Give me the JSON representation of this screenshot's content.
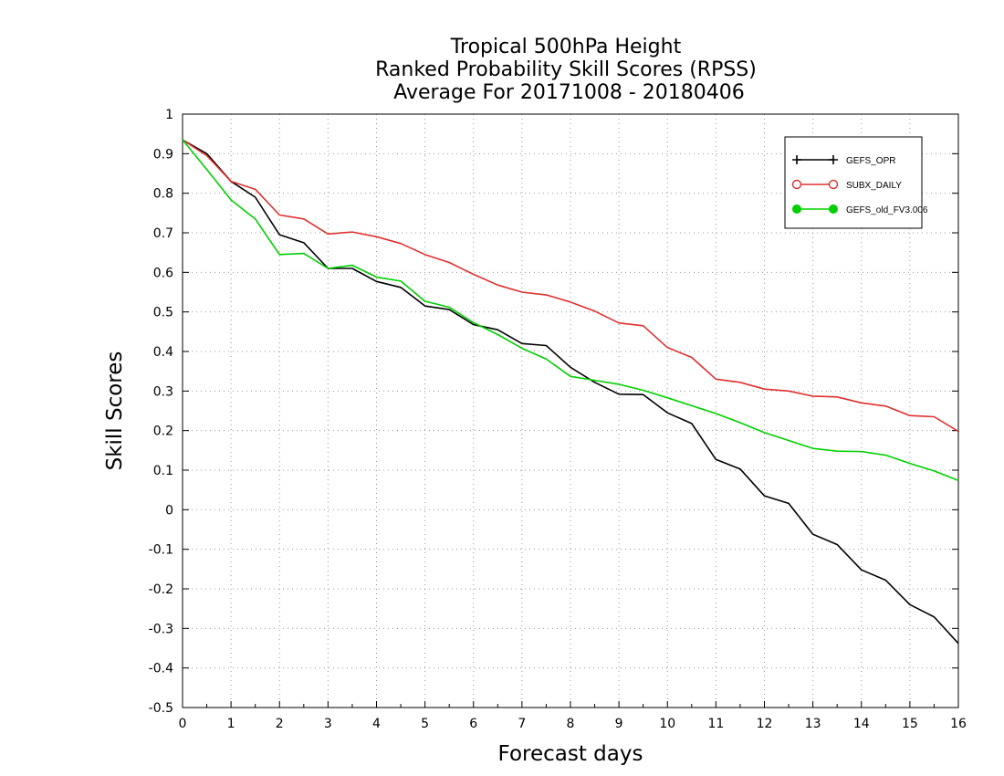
{
  "chart_data": {
    "type": "line",
    "title_lines": [
      "Tropical 500hPa Height",
      "Ranked Probability Skill Scores (RPSS)",
      " Average For 20171008 - 20180406"
    ],
    "xlabel": "Forecast days",
    "ylabel": "Skill Scores",
    "xlim": [
      0,
      16
    ],
    "ylim": [
      -0.5,
      1
    ],
    "xticks": [
      "0",
      "1",
      "2",
      "3",
      "4",
      "5",
      "6",
      "7",
      "8",
      "9",
      "10",
      "11",
      "12",
      "13",
      "14",
      "15",
      "16"
    ],
    "yticks": [
      "1",
      "0.9",
      "0.8",
      "0.7",
      "0.6",
      "0.5",
      "0.4",
      "0.3",
      "0.2",
      "0.1",
      "0",
      "-0.1",
      "-0.2",
      "-0.3",
      "-0.4",
      "-0.5"
    ],
    "grid": true,
    "legend_position": "top-right",
    "x": [
      0,
      0.5,
      1,
      1.5,
      2,
      2.5,
      3,
      3.5,
      4,
      4.5,
      5,
      5.5,
      6,
      6.5,
      7,
      7.5,
      8,
      8.5,
      9,
      9.5,
      10,
      10.5,
      11,
      11.5,
      12,
      12.5,
      13,
      13.5,
      14,
      14.5,
      15,
      15.5,
      16
    ],
    "series": [
      {
        "name": "GEFS_OPR",
        "color": "#000000",
        "marker": "plus",
        "values": [
          0.935,
          0.9,
          0.83,
          0.79,
          0.695,
          0.675,
          0.61,
          0.61,
          0.577,
          0.562,
          0.515,
          0.506,
          0.468,
          0.455,
          0.42,
          0.415,
          0.36,
          0.322,
          0.292,
          0.291,
          0.245,
          0.218,
          0.127,
          0.103,
          0.035,
          0.016,
          -0.062,
          -0.088,
          -0.152,
          -0.178,
          -0.24,
          -0.271,
          -0.338
        ]
      },
      {
        "name": "SUBX_DAILY",
        "color": "#e03030",
        "marker": "open-circle",
        "values": [
          0.935,
          0.895,
          0.83,
          0.81,
          0.745,
          0.735,
          0.697,
          0.702,
          0.69,
          0.673,
          0.645,
          0.625,
          0.595,
          0.568,
          0.55,
          0.543,
          0.525,
          0.502,
          0.472,
          0.465,
          0.41,
          0.385,
          0.33,
          0.322,
          0.305,
          0.3,
          0.287,
          0.285,
          0.27,
          0.262,
          0.238,
          0.235,
          0.198
        ]
      },
      {
        "name": "GEFS_old_FV3.006",
        "color": "#00d000",
        "marker": "filled-circle",
        "values": [
          0.935,
          0.86,
          0.783,
          0.735,
          0.645,
          0.648,
          0.61,
          0.618,
          0.588,
          0.578,
          0.527,
          0.512,
          0.473,
          0.443,
          0.408,
          0.381,
          0.337,
          0.327,
          0.317,
          0.302,
          0.283,
          0.263,
          0.243,
          0.22,
          0.195,
          0.175,
          0.155,
          0.148,
          0.147,
          0.138,
          0.117,
          0.098,
          0.074
        ]
      }
    ]
  }
}
